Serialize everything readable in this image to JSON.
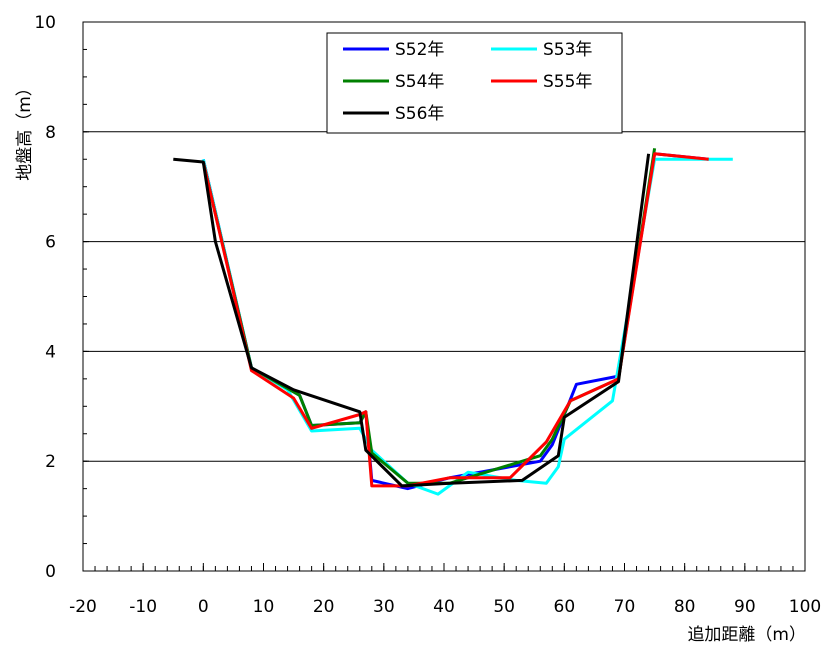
{
  "chart_data": {
    "type": "line",
    "title": "",
    "xlabel": "追加距離（m）",
    "ylabel": "地盤高（m）",
    "xlim": [
      -20,
      100
    ],
    "ylim": [
      0,
      10
    ],
    "xticks": [
      -20,
      -10,
      0,
      10,
      20,
      30,
      40,
      50,
      60,
      70,
      80,
      90,
      100
    ],
    "yticks": [
      0,
      2,
      4,
      6,
      8,
      10
    ],
    "x_tick_labels": [
      "-20",
      "-10",
      "0",
      "10",
      "20",
      "30",
      "40",
      "50",
      "60",
      "70",
      "80",
      "90",
      "100"
    ],
    "y_tick_labels": [
      "0",
      "2",
      "4",
      "6",
      "8",
      "10"
    ],
    "grid": "horizontal",
    "legend_position": "top-center",
    "series": [
      {
        "name": "S52年",
        "color": "#0000ff",
        "points": [
          [
            0,
            7.5
          ],
          [
            8,
            3.7
          ],
          [
            16,
            3.2
          ],
          [
            18,
            2.65
          ],
          [
            26,
            2.7
          ],
          [
            27,
            2.9
          ],
          [
            28,
            1.65
          ],
          [
            34,
            1.5
          ],
          [
            41,
            1.7
          ],
          [
            56,
            2.0
          ],
          [
            58,
            2.3
          ],
          [
            62,
            3.4
          ],
          [
            69,
            3.55
          ],
          [
            75,
            7.6
          ],
          [
            84,
            7.5
          ]
        ]
      },
      {
        "name": "S53年",
        "color": "#00ffff",
        "points": [
          [
            0,
            7.5
          ],
          [
            8,
            3.7
          ],
          [
            14,
            3.3
          ],
          [
            18,
            2.55
          ],
          [
            26,
            2.6
          ],
          [
            28,
            2.2
          ],
          [
            34,
            1.6
          ],
          [
            39,
            1.4
          ],
          [
            44,
            1.8
          ],
          [
            52,
            1.65
          ],
          [
            57,
            1.6
          ],
          [
            59,
            1.9
          ],
          [
            60,
            2.4
          ],
          [
            68,
            3.1
          ],
          [
            75,
            7.5
          ],
          [
            88,
            7.5
          ]
        ]
      },
      {
        "name": "S54年",
        "color": "#008000",
        "points": [
          [
            0,
            7.45
          ],
          [
            8,
            3.7
          ],
          [
            16,
            3.2
          ],
          [
            18,
            2.65
          ],
          [
            26,
            2.7
          ],
          [
            27,
            2.9
          ],
          [
            28,
            2.15
          ],
          [
            34,
            1.6
          ],
          [
            41,
            1.6
          ],
          [
            56,
            2.1
          ],
          [
            58,
            2.4
          ],
          [
            61,
            3.1
          ],
          [
            69,
            3.5
          ],
          [
            75,
            7.7
          ]
        ]
      },
      {
        "name": "S55年",
        "color": "#ff0000",
        "points": [
          [
            0,
            7.45
          ],
          [
            8,
            3.65
          ],
          [
            15,
            3.15
          ],
          [
            18,
            2.6
          ],
          [
            26,
            2.85
          ],
          [
            27,
            2.9
          ],
          [
            28,
            1.55
          ],
          [
            34,
            1.55
          ],
          [
            41,
            1.7
          ],
          [
            51,
            1.7
          ],
          [
            57,
            2.35
          ],
          [
            61,
            3.1
          ],
          [
            69,
            3.5
          ],
          [
            75,
            7.6
          ],
          [
            84,
            7.5
          ]
        ]
      },
      {
        "name": "S56年",
        "color": "#000000",
        "points": [
          [
            -5,
            7.5
          ],
          [
            0,
            7.45
          ],
          [
            2,
            6.0
          ],
          [
            8,
            3.7
          ],
          [
            15,
            3.3
          ],
          [
            26,
            2.9
          ],
          [
            27,
            2.2
          ],
          [
            33,
            1.55
          ],
          [
            41,
            1.6
          ],
          [
            53,
            1.65
          ],
          [
            59,
            2.1
          ],
          [
            60,
            2.8
          ],
          [
            69,
            3.45
          ],
          [
            74,
            7.6
          ]
        ]
      }
    ]
  }
}
